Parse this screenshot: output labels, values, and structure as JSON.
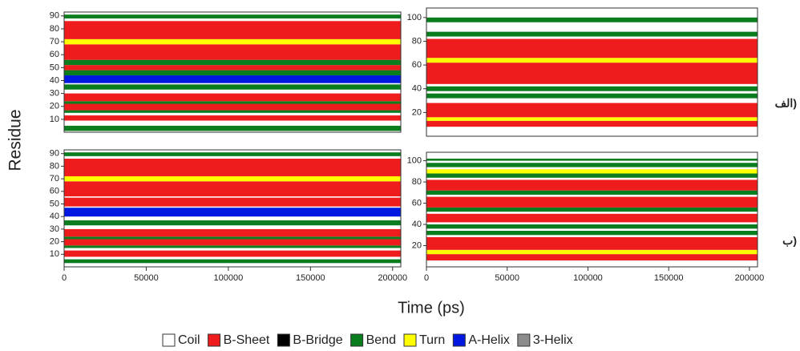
{
  "figure": {
    "y_label": "Residue",
    "x_label": "Time (ps)",
    "legend": [
      {
        "name": "Coil",
        "color": "#ffffff"
      },
      {
        "name": "B-Sheet",
        "color": "#ee1c1c"
      },
      {
        "name": "B-Bridge",
        "color": "#000000"
      },
      {
        "name": "Bend",
        "color": "#0a7d1e"
      },
      {
        "name": "Turn",
        "color": "#ffff00"
      },
      {
        "name": "A-Helix",
        "color": "#0018e0"
      },
      {
        "name": "3-Helix",
        "color": "#8c8c8c"
      }
    ]
  },
  "chart_data": [
    {
      "type": "heatmap",
      "xlim": [
        0,
        205000
      ],
      "ylim": [
        0,
        93
      ],
      "yticks": [
        10,
        20,
        30,
        40,
        50,
        60,
        70,
        80,
        90
      ],
      "bands": [
        {
          "y0": 1,
          "y1": 5,
          "color": "#0a7d1e"
        },
        {
          "y0": 9,
          "y1": 13,
          "color": "#ee1c1c"
        },
        {
          "y0": 15,
          "y1": 17,
          "color": "#0a7d1e"
        },
        {
          "y0": 17,
          "y1": 22,
          "color": "#ee1c1c"
        },
        {
          "y0": 22,
          "y1": 24,
          "color": "#0a7d1e"
        },
        {
          "y0": 24,
          "y1": 30,
          "color": "#ee1c1c"
        },
        {
          "y0": 33,
          "y1": 37,
          "color": "#0a7d1e"
        },
        {
          "y0": 38,
          "y1": 44,
          "color": "#0018e0"
        },
        {
          "y0": 44,
          "y1": 48,
          "color": "#0a7d1e"
        },
        {
          "y0": 48,
          "y1": 52,
          "color": "#ee1c1c"
        },
        {
          "y0": 52,
          "y1": 56,
          "color": "#0a7d1e"
        },
        {
          "y0": 56,
          "y1": 68,
          "color": "#ee1c1c"
        },
        {
          "y0": 68,
          "y1": 72,
          "color": "#ffff00"
        },
        {
          "y0": 72,
          "y1": 86,
          "color": "#ee1c1c"
        },
        {
          "y0": 88,
          "y1": 91,
          "color": "#0a7d1e"
        }
      ]
    },
    {
      "type": "heatmap",
      "panel_label": "الف)",
      "xlim": [
        0,
        205000
      ],
      "ylim": [
        0,
        108
      ],
      "yticks": [
        20,
        40,
        60,
        80,
        100
      ],
      "bands": [
        {
          "y0": 8,
          "y1": 13,
          "color": "#ee1c1c"
        },
        {
          "y0": 13,
          "y1": 16,
          "color": "#ffff00"
        },
        {
          "y0": 16,
          "y1": 28,
          "color": "#ee1c1c"
        },
        {
          "y0": 32,
          "y1": 36,
          "color": "#0a7d1e"
        },
        {
          "y0": 38,
          "y1": 42,
          "color": "#0a7d1e"
        },
        {
          "y0": 44,
          "y1": 62,
          "color": "#ee1c1c"
        },
        {
          "y0": 62,
          "y1": 66,
          "color": "#ffff00"
        },
        {
          "y0": 66,
          "y1": 82,
          "color": "#ee1c1c"
        },
        {
          "y0": 84,
          "y1": 88,
          "color": "#0a7d1e"
        },
        {
          "y0": 96,
          "y1": 100,
          "color": "#0a7d1e"
        }
      ]
    },
    {
      "type": "heatmap",
      "xlim": [
        0,
        205000
      ],
      "ylim": [
        0,
        93
      ],
      "yticks": [
        10,
        20,
        30,
        40,
        50,
        60,
        70,
        80,
        90
      ],
      "xticks": [
        0,
        50000,
        100000,
        150000,
        200000
      ],
      "bands": [
        {
          "y0": 3,
          "y1": 6,
          "color": "#0a7d1e"
        },
        {
          "y0": 8,
          "y1": 13,
          "color": "#ee1c1c"
        },
        {
          "y0": 15,
          "y1": 17,
          "color": "#0a7d1e"
        },
        {
          "y0": 17,
          "y1": 22,
          "color": "#ee1c1c"
        },
        {
          "y0": 22,
          "y1": 24,
          "color": "#0a7d1e"
        },
        {
          "y0": 24,
          "y1": 30,
          "color": "#ee1c1c"
        },
        {
          "y0": 33,
          "y1": 37,
          "color": "#0a7d1e"
        },
        {
          "y0": 40,
          "y1": 47,
          "color": "#0018e0"
        },
        {
          "y0": 48,
          "y1": 55,
          "color": "#ee1c1c"
        },
        {
          "y0": 56,
          "y1": 68,
          "color": "#ee1c1c"
        },
        {
          "y0": 68,
          "y1": 72,
          "color": "#ffff00"
        },
        {
          "y0": 72,
          "y1": 86,
          "color": "#ee1c1c"
        },
        {
          "y0": 88,
          "y1": 91,
          "color": "#0a7d1e"
        }
      ]
    },
    {
      "type": "heatmap",
      "panel_label": "ب)",
      "xlim": [
        0,
        205000
      ],
      "ylim": [
        0,
        108
      ],
      "yticks": [
        20,
        40,
        60,
        80,
        100
      ],
      "xticks": [
        0,
        50000,
        100000,
        150000,
        200000
      ],
      "bands": [
        {
          "y0": 6,
          "y1": 12,
          "color": "#ee1c1c"
        },
        {
          "y0": 12,
          "y1": 16,
          "color": "#ffff00"
        },
        {
          "y0": 16,
          "y1": 28,
          "color": "#ee1c1c"
        },
        {
          "y0": 30,
          "y1": 34,
          "color": "#0a7d1e"
        },
        {
          "y0": 36,
          "y1": 40,
          "color": "#0a7d1e"
        },
        {
          "y0": 42,
          "y1": 50,
          "color": "#ee1c1c"
        },
        {
          "y0": 52,
          "y1": 56,
          "color": "#0a7d1e"
        },
        {
          "y0": 56,
          "y1": 66,
          "color": "#ee1c1c"
        },
        {
          "y0": 68,
          "y1": 72,
          "color": "#0a7d1e"
        },
        {
          "y0": 72,
          "y1": 82,
          "color": "#ee1c1c"
        },
        {
          "y0": 84,
          "y1": 88,
          "color": "#0a7d1e"
        },
        {
          "y0": 88,
          "y1": 92,
          "color": "#ffff00"
        },
        {
          "y0": 94,
          "y1": 98,
          "color": "#0a7d1e"
        },
        {
          "y0": 100,
          "y1": 102,
          "color": "#0a7d1e"
        }
      ]
    }
  ]
}
